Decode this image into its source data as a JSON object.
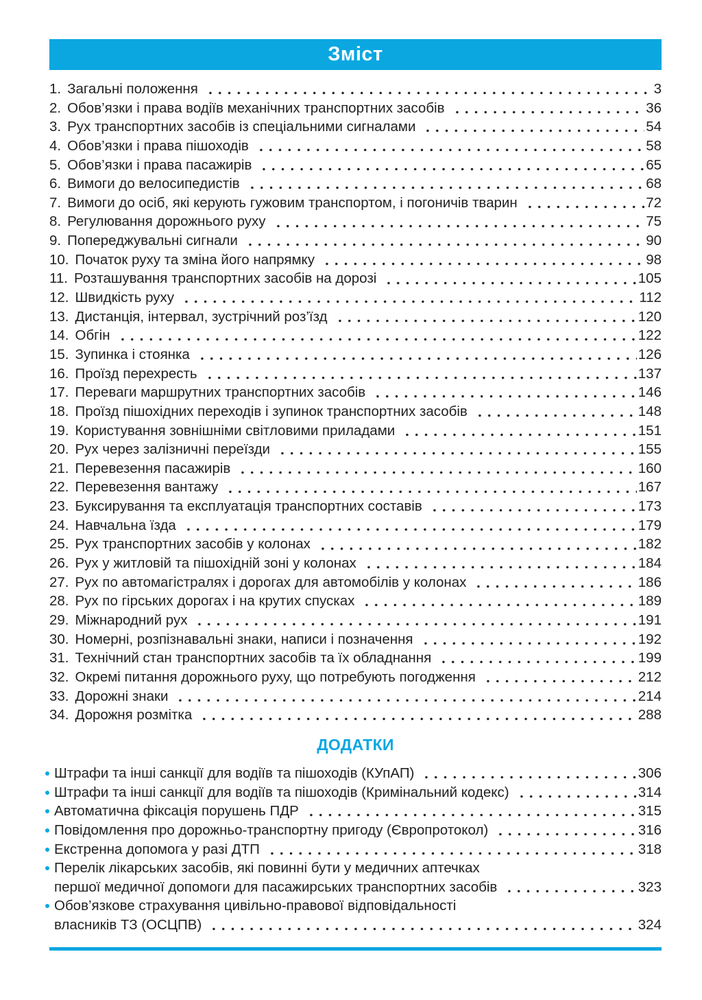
{
  "page": {
    "title": "Зміст",
    "appendix_title": "ДОДАТКИ",
    "accent_color": "#0ba7e1",
    "text_color": "#222222"
  },
  "toc": {
    "items": [
      {
        "num": "1.",
        "title": "Загальні положення",
        "page": "3"
      },
      {
        "num": "2.",
        "title": "Обов’язки і права водіїв механічних транспортних засобів",
        "page": "36"
      },
      {
        "num": "3.",
        "title": "Рух транспортних засобів із спеціальними сигналами",
        "page": "54"
      },
      {
        "num": "4.",
        "title": "Обов’язки і права пішоходів",
        "page": "58"
      },
      {
        "num": "5.",
        "title": "Обов’язки і права пасажирів",
        "page": "65"
      },
      {
        "num": "6.",
        "title": "Вимоги до велосипедистів",
        "page": "68"
      },
      {
        "num": "7.",
        "title": "Вимоги до осіб, які керують гужовим транспортом, і погоничів тварин",
        "page": "72"
      },
      {
        "num": "8.",
        "title": "Регулювання дорожнього руху",
        "page": "75"
      },
      {
        "num": "9.",
        "title": "Попереджувальні сигнали",
        "page": "90"
      },
      {
        "num": "10.",
        "title": "Початок руху та зміна його напрямку",
        "page": "98"
      },
      {
        "num": "11.",
        "title": "Розташування транспортних засобів на дорозі",
        "page": "105"
      },
      {
        "num": "12.",
        "title": "Швидкість руху",
        "page": "112"
      },
      {
        "num": "13.",
        "title": "Дистанція, інтервал, зустрічний роз’їзд",
        "page": "120"
      },
      {
        "num": "14.",
        "title": "Обгін",
        "page": "122"
      },
      {
        "num": "15.",
        "title": "Зупинка і стоянка",
        "page": "126"
      },
      {
        "num": "16.",
        "title": "Проїзд перехресть",
        "page": "137"
      },
      {
        "num": "17.",
        "title": "Переваги маршрутних транспортних засобів",
        "page": "146"
      },
      {
        "num": "18.",
        "title": "Проїзд пішохідних переходів і зупинок транспортних засобів",
        "page": "148"
      },
      {
        "num": "19.",
        "title": "Користування зовнішніми світловими приладами",
        "page": "151"
      },
      {
        "num": "20.",
        "title": "Рух через залізничні переїзди",
        "page": "155"
      },
      {
        "num": "21.",
        "title": "Перевезення пасажирів",
        "page": "160"
      },
      {
        "num": "22.",
        "title": "Перевезення вантажу",
        "page": "167"
      },
      {
        "num": "23.",
        "title": "Буксирування та експлуатація транспортних составів",
        "page": "173"
      },
      {
        "num": "24.",
        "title": "Навчальна їзда",
        "page": "179"
      },
      {
        "num": "25.",
        "title": "Рух транспортних засобів у колонах",
        "page": "182"
      },
      {
        "num": "26.",
        "title": "Рух у житловій та пішохідній зоні у колонах",
        "page": "184"
      },
      {
        "num": "27.",
        "title": "Рух по автомагістралях і дорогах для автомобілів у колонах",
        "page": "186"
      },
      {
        "num": "28.",
        "title": "Рух по гірських дорогах і на крутих спусках",
        "page": "189"
      },
      {
        "num": "29.",
        "title": "Міжнародний рух",
        "page": "191"
      },
      {
        "num": "30.",
        "title": "Номерні, розпізнавальні знаки, написи і позначення",
        "page": "192"
      },
      {
        "num": "31.",
        "title": "Технічний стан транспортних засобів та їх обладнання",
        "page": "199"
      },
      {
        "num": "32.",
        "title": "Окремі питання дорожнього руху, що потребують погодження",
        "page": "212"
      },
      {
        "num": "33.",
        "title": "Дорожні знаки",
        "page": "214"
      },
      {
        "num": "34.",
        "title": "Дорожня розмітка",
        "page": "288"
      }
    ]
  },
  "appendix": {
    "items": [
      {
        "lines": [
          "Штрафи та інші санкції для водіїв та пішоходів (КУпАП)"
        ],
        "page": "306"
      },
      {
        "lines": [
          "Штрафи та інші санкції для водіїв та пішоходів (Кримінальний кодекс)"
        ],
        "page": "314"
      },
      {
        "lines": [
          "Автоматична фіксація порушень ПДР"
        ],
        "page": "315"
      },
      {
        "lines": [
          "Повідомлення про дорожньо-транспортну пригоду (Європротокол)"
        ],
        "page": "316"
      },
      {
        "lines": [
          "Екстренна допомога у разі ДТП"
        ],
        "page": "318"
      },
      {
        "lines": [
          "Перелік лікарських засобів, які повинні бути у медичних аптечках",
          "першої медичної допомоги для пасажирських транспортних засобів"
        ],
        "page": "323"
      },
      {
        "lines": [
          "Обов’язкове страхування цивільно-правової відповідальності",
          "власників ТЗ (ОСЦПВ)"
        ],
        "page": "324"
      }
    ]
  }
}
